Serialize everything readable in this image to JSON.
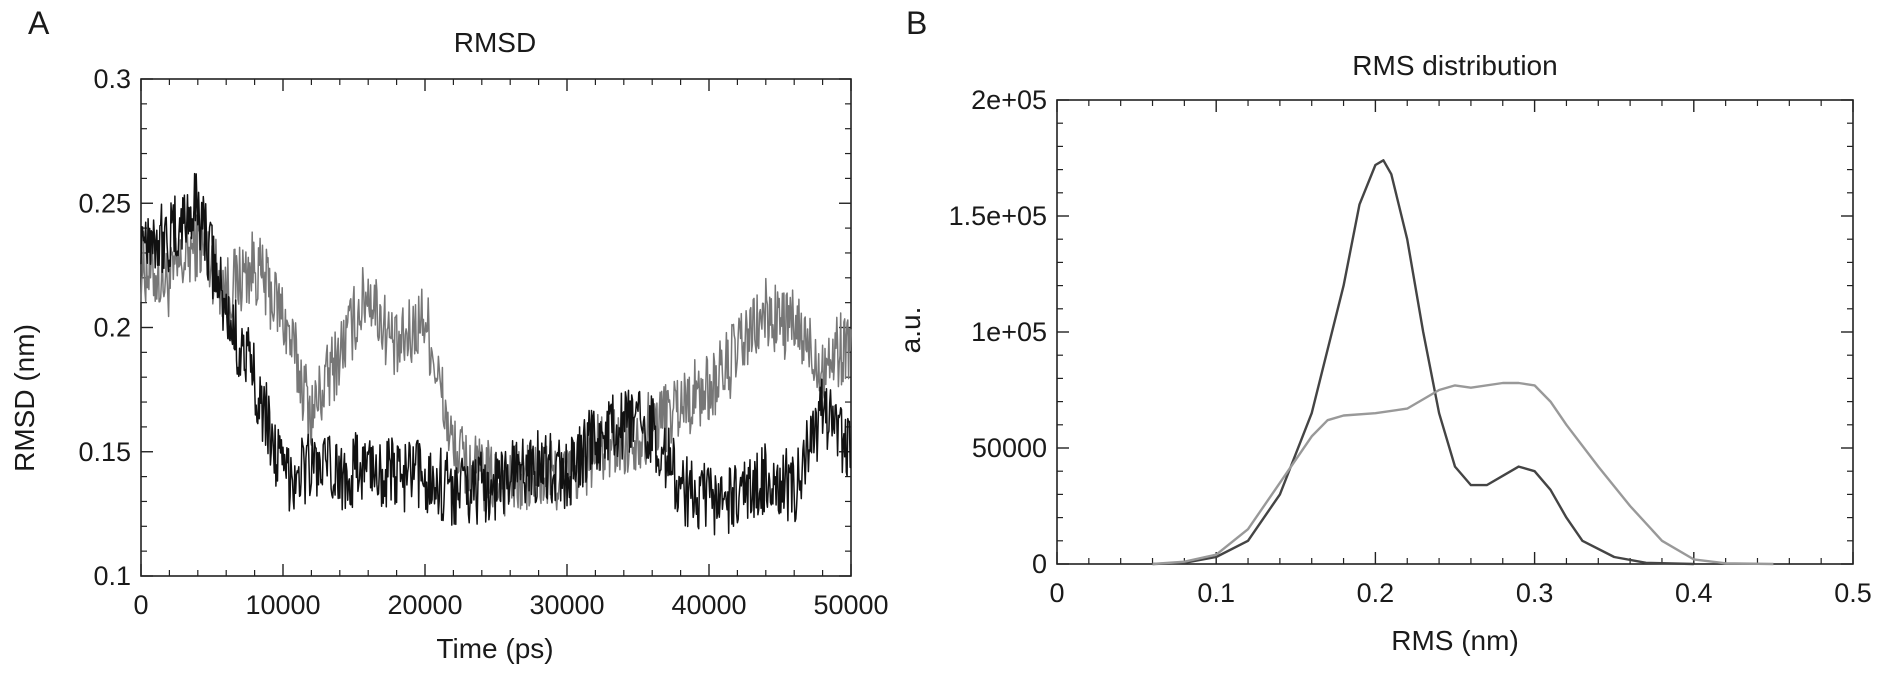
{
  "chart_data": [
    {
      "panel_label": "A",
      "type": "line",
      "title": "RMSD",
      "xlabel": "Time (ps)",
      "ylabel": "RMSD (nm)",
      "xlim": [
        0,
        50000
      ],
      "ylim": [
        0.1,
        0.3
      ],
      "x_ticks": [
        0,
        10000,
        20000,
        30000,
        40000,
        50000
      ],
      "x_tick_labels": [
        "0",
        "10000",
        "20000",
        "30000",
        "40000",
        "50000"
      ],
      "y_ticks": [
        0.1,
        0.15,
        0.2,
        0.25,
        0.3
      ],
      "y_tick_labels": [
        "0.1",
        "0.15",
        "0.2",
        "0.25",
        "0.3"
      ],
      "grid": false,
      "legend": "none",
      "series": [
        {
          "color": "#777777",
          "x": [
            0,
            2000,
            4000,
            6000,
            8000,
            10000,
            12000,
            14000,
            16000,
            18000,
            20000,
            22000,
            24000,
            26000,
            28000,
            30000,
            32000,
            34000,
            36000,
            38000,
            40000,
            42000,
            44000,
            46000,
            48000,
            50000
          ],
          "y": [
            0.225,
            0.218,
            0.235,
            0.215,
            0.225,
            0.205,
            0.165,
            0.19,
            0.215,
            0.19,
            0.205,
            0.15,
            0.14,
            0.138,
            0.14,
            0.14,
            0.15,
            0.155,
            0.16,
            0.17,
            0.175,
            0.19,
            0.205,
            0.2,
            0.185,
            0.195
          ]
        },
        {
          "color": "#111111",
          "x": [
            0,
            2000,
            4000,
            6000,
            8000,
            10000,
            12000,
            14000,
            16000,
            18000,
            20000,
            22000,
            24000,
            26000,
            28000,
            30000,
            32000,
            34000,
            36000,
            38000,
            40000,
            42000,
            44000,
            46000,
            48000,
            50000
          ],
          "y": [
            0.24,
            0.235,
            0.25,
            0.205,
            0.18,
            0.14,
            0.145,
            0.14,
            0.145,
            0.14,
            0.14,
            0.135,
            0.135,
            0.14,
            0.145,
            0.14,
            0.155,
            0.16,
            0.16,
            0.135,
            0.13,
            0.13,
            0.14,
            0.135,
            0.165,
            0.15
          ]
        }
      ]
    },
    {
      "panel_label": "B",
      "type": "line",
      "title": "RMS distribution",
      "xlabel": "RMS (nm)",
      "ylabel": "a.u.",
      "xlim": [
        0,
        0.5
      ],
      "ylim": [
        0,
        200000
      ],
      "x_ticks": [
        0,
        0.1,
        0.2,
        0.3,
        0.4,
        0.5
      ],
      "x_tick_labels": [
        "0",
        "0.1",
        "0.2",
        "0.3",
        "0.4",
        "0.5"
      ],
      "y_ticks": [
        0,
        50000,
        100000,
        150000,
        200000
      ],
      "y_tick_labels": [
        "0",
        "50000",
        "1e+05",
        "1.5e+05",
        "2e+05"
      ],
      "grid": false,
      "legend": "none",
      "series": [
        {
          "color": "#444444",
          "x": [
            0.06,
            0.08,
            0.1,
            0.12,
            0.14,
            0.16,
            0.18,
            0.19,
            0.2,
            0.205,
            0.21,
            0.22,
            0.23,
            0.24,
            0.25,
            0.26,
            0.27,
            0.28,
            0.29,
            0.3,
            0.31,
            0.32,
            0.33,
            0.35,
            0.37,
            0.4
          ],
          "y": [
            0,
            500,
            3000,
            10000,
            30000,
            65000,
            120000,
            155000,
            172000,
            174000,
            168000,
            140000,
            100000,
            65000,
            42000,
            34000,
            34000,
            38000,
            42000,
            40000,
            32000,
            20000,
            10000,
            3000,
            500,
            0
          ]
        },
        {
          "color": "#999999",
          "x": [
            0.06,
            0.08,
            0.1,
            0.12,
            0.14,
            0.16,
            0.17,
            0.18,
            0.2,
            0.22,
            0.24,
            0.25,
            0.26,
            0.28,
            0.29,
            0.3,
            0.31,
            0.32,
            0.34,
            0.36,
            0.38,
            0.4,
            0.42,
            0.45
          ],
          "y": [
            0,
            1000,
            4000,
            15000,
            35000,
            55000,
            62000,
            64000,
            65000,
            67000,
            75000,
            77000,
            76000,
            78000,
            78000,
            77000,
            70000,
            60000,
            42000,
            25000,
            10000,
            2000,
            300,
            0
          ]
        }
      ]
    }
  ]
}
